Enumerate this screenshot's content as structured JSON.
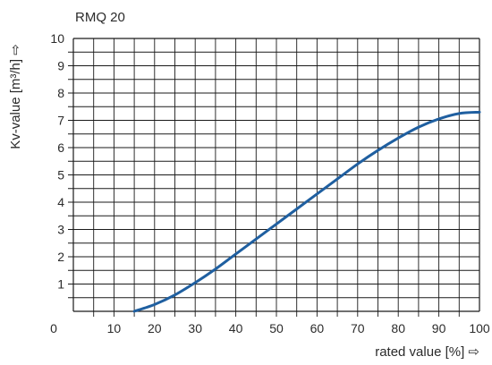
{
  "chart_data": {
    "type": "line",
    "title": "RMQ 20",
    "xlabel": "rated value [%] ⇨",
    "ylabel": "Kv-value [m³/h] ⇨",
    "xlim": [
      0,
      100
    ],
    "ylim": [
      0,
      10
    ],
    "x_ticks": [
      0,
      10,
      20,
      30,
      40,
      50,
      60,
      70,
      80,
      90,
      100
    ],
    "y_ticks": [
      1,
      2,
      3,
      4,
      5,
      6,
      7,
      8,
      9,
      10
    ],
    "grid_step_x": 5,
    "grid_step_y": 0.5,
    "grid": true,
    "legend": "none",
    "series": [
      {
        "color": "#1f5fa0",
        "x": [
          15,
          20,
          25,
          30,
          35,
          40,
          45,
          50,
          55,
          60,
          65,
          70,
          75,
          80,
          85,
          90,
          95,
          100
        ],
        "y": [
          0,
          0.25,
          0.6,
          1.05,
          1.55,
          2.1,
          2.65,
          3.2,
          3.75,
          4.3,
          4.85,
          5.4,
          5.9,
          6.35,
          6.75,
          7.05,
          7.25,
          7.3
        ]
      }
    ]
  }
}
